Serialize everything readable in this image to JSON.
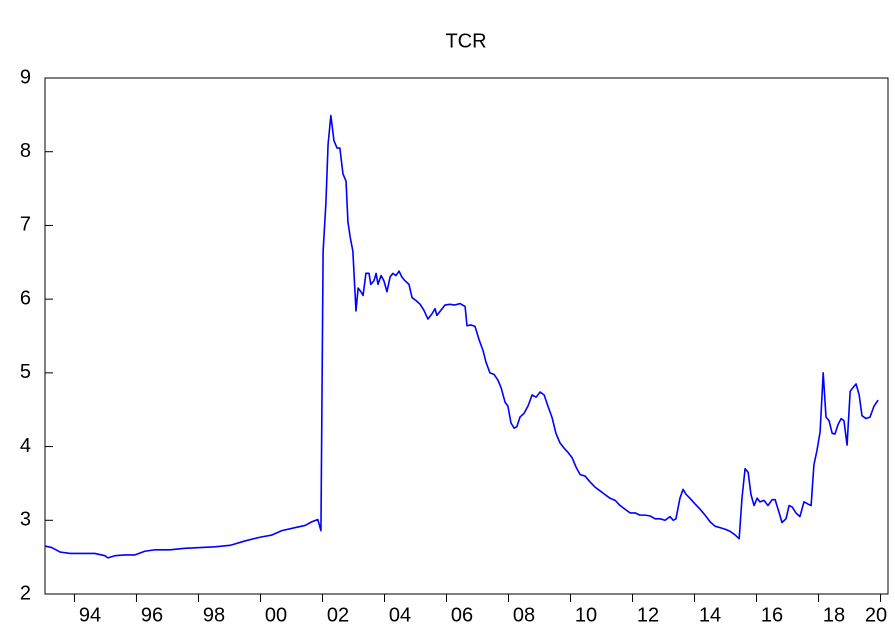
{
  "chart_data": {
    "type": "line",
    "title": "TCR",
    "xlim": [
      1993.05,
      2020.24
    ],
    "ylim": [
      2,
      9
    ],
    "yticks": [
      2,
      3,
      4,
      5,
      6,
      7,
      8,
      9
    ],
    "xticks": [
      {
        "value": 1994,
        "label": "94"
      },
      {
        "value": 1996,
        "label": "96"
      },
      {
        "value": 1998,
        "label": "98"
      },
      {
        "value": 2000,
        "label": "00"
      },
      {
        "value": 2002,
        "label": "02"
      },
      {
        "value": 2004,
        "label": "04"
      },
      {
        "value": 2006,
        "label": "06"
      },
      {
        "value": 2008,
        "label": "08"
      },
      {
        "value": 2010,
        "label": "10"
      },
      {
        "value": 2012,
        "label": "12"
      },
      {
        "value": 2014,
        "label": "14"
      },
      {
        "value": 2016,
        "label": "16"
      },
      {
        "value": 2018,
        "label": "18"
      },
      {
        "value": 2020,
        "label": "20"
      }
    ],
    "grid": false,
    "series": [
      {
        "color": "#0000ff",
        "x": [
          1993.05,
          1993.27,
          1993.53,
          1993.86,
          1994.34,
          1994.66,
          1994.98,
          1995.08,
          1995.31,
          1995.63,
          1995.95,
          1996.27,
          1996.6,
          1997.08,
          1997.56,
          1998.05,
          1998.53,
          1999.02,
          1999.5,
          1999.98,
          2000.37,
          2000.69,
          2001.11,
          2001.44,
          2001.66,
          2001.85,
          2001.95,
          2002.02,
          2002.11,
          2002.18,
          2002.27,
          2002.37,
          2002.47,
          2002.56,
          2002.66,
          2002.76,
          2002.82,
          2002.89,
          2002.98,
          2003.08,
          2003.15,
          2003.24,
          2003.31,
          2003.4,
          2003.5,
          2003.56,
          2003.66,
          2003.73,
          2003.79,
          2003.89,
          2003.98,
          2004.08,
          2004.18,
          2004.27,
          2004.37,
          2004.47,
          2004.56,
          2004.66,
          2004.79,
          2004.89,
          2005.02,
          2005.15,
          2005.27,
          2005.4,
          2005.53,
          2005.63,
          2005.69,
          2005.82,
          2005.95,
          2006.11,
          2006.27,
          2006.44,
          2006.6,
          2006.66,
          2006.79,
          2006.92,
          2007.05,
          2007.18,
          2007.27,
          2007.4,
          2007.53,
          2007.66,
          2007.76,
          2007.89,
          2007.98,
          2008.08,
          2008.18,
          2008.27,
          2008.37,
          2008.5,
          2008.63,
          2008.76,
          2008.89,
          2009.02,
          2009.15,
          2009.27,
          2009.4,
          2009.53,
          2009.66,
          2009.79,
          2009.92,
          2010.05,
          2010.18,
          2010.31,
          2010.47,
          2010.63,
          2010.79,
          2010.95,
          2011.11,
          2011.27,
          2011.44,
          2011.6,
          2011.76,
          2011.92,
          2012.08,
          2012.24,
          2012.4,
          2012.56,
          2012.73,
          2012.89,
          2013.05,
          2013.21,
          2013.31,
          2013.4,
          2013.53,
          2013.63,
          2013.73,
          2013.85,
          2014.02,
          2014.18,
          2014.34,
          2014.5,
          2014.66,
          2014.82,
          2014.98,
          2015.15,
          2015.31,
          2015.44,
          2015.53,
          2015.63,
          2015.73,
          2015.82,
          2015.92,
          2016.02,
          2016.11,
          2016.24,
          2016.37,
          2016.5,
          2016.6,
          2016.73,
          2016.82,
          2016.95,
          2017.05,
          2017.15,
          2017.27,
          2017.4,
          2017.53,
          2017.66,
          2017.76,
          2017.85,
          2017.95,
          2018.05,
          2018.15,
          2018.24,
          2018.34,
          2018.44,
          2018.53,
          2018.63,
          2018.73,
          2018.82,
          2018.92,
          2019.02,
          2019.11,
          2019.21,
          2019.31,
          2019.4,
          2019.53,
          2019.66,
          2019.79,
          2019.92
        ],
        "values": [
          2.65,
          2.63,
          2.57,
          2.55,
          2.55,
          2.55,
          2.52,
          2.49,
          2.52,
          2.53,
          2.53,
          2.58,
          2.6,
          2.6,
          2.62,
          2.63,
          2.64,
          2.66,
          2.72,
          2.77,
          2.8,
          2.86,
          2.9,
          2.93,
          2.98,
          3.01,
          2.86,
          6.65,
          7.3,
          8.1,
          8.49,
          8.15,
          8.05,
          8.05,
          7.7,
          7.6,
          7.05,
          6.85,
          6.65,
          5.84,
          6.15,
          6.1,
          6.05,
          6.35,
          6.35,
          6.2,
          6.25,
          6.35,
          6.2,
          6.32,
          6.25,
          6.1,
          6.3,
          6.35,
          6.32,
          6.38,
          6.3,
          6.25,
          6.2,
          6.02,
          5.98,
          5.93,
          5.85,
          5.73,
          5.8,
          5.87,
          5.78,
          5.85,
          5.92,
          5.93,
          5.92,
          5.94,
          5.9,
          5.64,
          5.65,
          5.63,
          5.45,
          5.3,
          5.15,
          5.0,
          4.98,
          4.9,
          4.8,
          4.6,
          4.55,
          4.32,
          4.25,
          4.27,
          4.4,
          4.45,
          4.55,
          4.7,
          4.67,
          4.74,
          4.7,
          4.55,
          4.4,
          4.18,
          4.05,
          3.98,
          3.92,
          3.85,
          3.72,
          3.62,
          3.6,
          3.52,
          3.45,
          3.4,
          3.35,
          3.3,
          3.27,
          3.2,
          3.15,
          3.1,
          3.1,
          3.07,
          3.07,
          3.06,
          3.02,
          3.02,
          3.0,
          3.05,
          3.0,
          3.02,
          3.3,
          3.42,
          3.35,
          3.3,
          3.22,
          3.15,
          3.07,
          2.98,
          2.92,
          2.9,
          2.88,
          2.85,
          2.8,
          2.75,
          3.3,
          3.7,
          3.65,
          3.35,
          3.2,
          3.3,
          3.25,
          3.27,
          3.2,
          3.28,
          3.28,
          3.1,
          2.97,
          3.02,
          3.2,
          3.18,
          3.1,
          3.05,
          3.25,
          3.22,
          3.2,
          3.75,
          3.95,
          4.2,
          5.0,
          4.4,
          4.35,
          4.18,
          4.17,
          4.3,
          4.38,
          4.35,
          4.02,
          4.75,
          4.8,
          4.85,
          4.7,
          4.42,
          4.38,
          4.4,
          4.55,
          4.63
        ]
      }
    ]
  }
}
